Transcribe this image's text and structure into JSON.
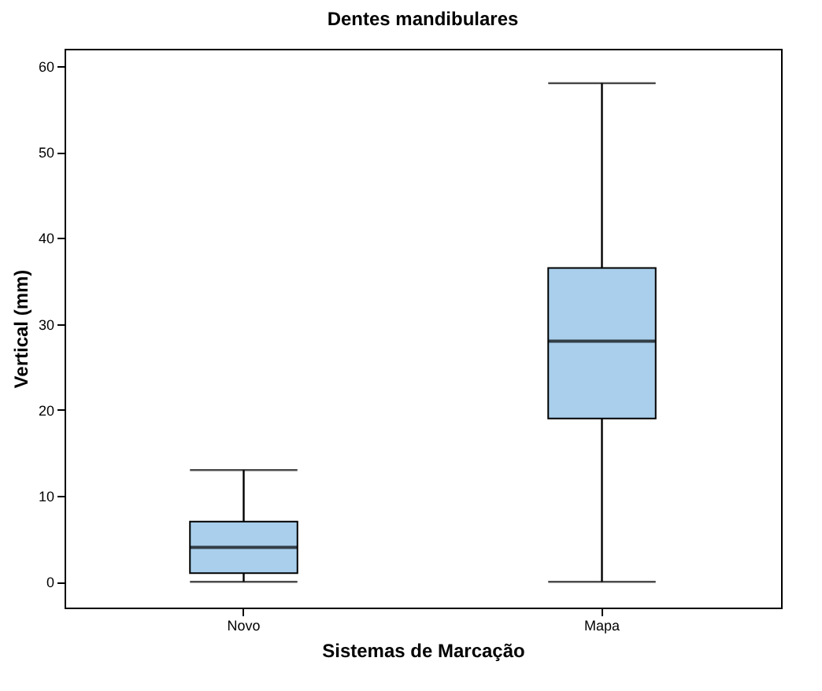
{
  "chart_data": {
    "type": "box",
    "title": "Dentes mandibulares",
    "xlabel": "Sistemas de Marcação",
    "ylabel": "Vertical (mm)",
    "categories": [
      "Novo",
      "Mapa"
    ],
    "boxes": [
      {
        "low": 0,
        "q1": 1,
        "median": 4,
        "q3": 7,
        "high": 13
      },
      {
        "low": 0,
        "q1": 19,
        "median": 28,
        "q3": 36.5,
        "high": 58
      }
    ],
    "color": "#a9cfec",
    "ylim": [
      -3,
      62
    ],
    "yticks": [
      0,
      10,
      20,
      30,
      40,
      50,
      60
    ],
    "grid": false
  }
}
